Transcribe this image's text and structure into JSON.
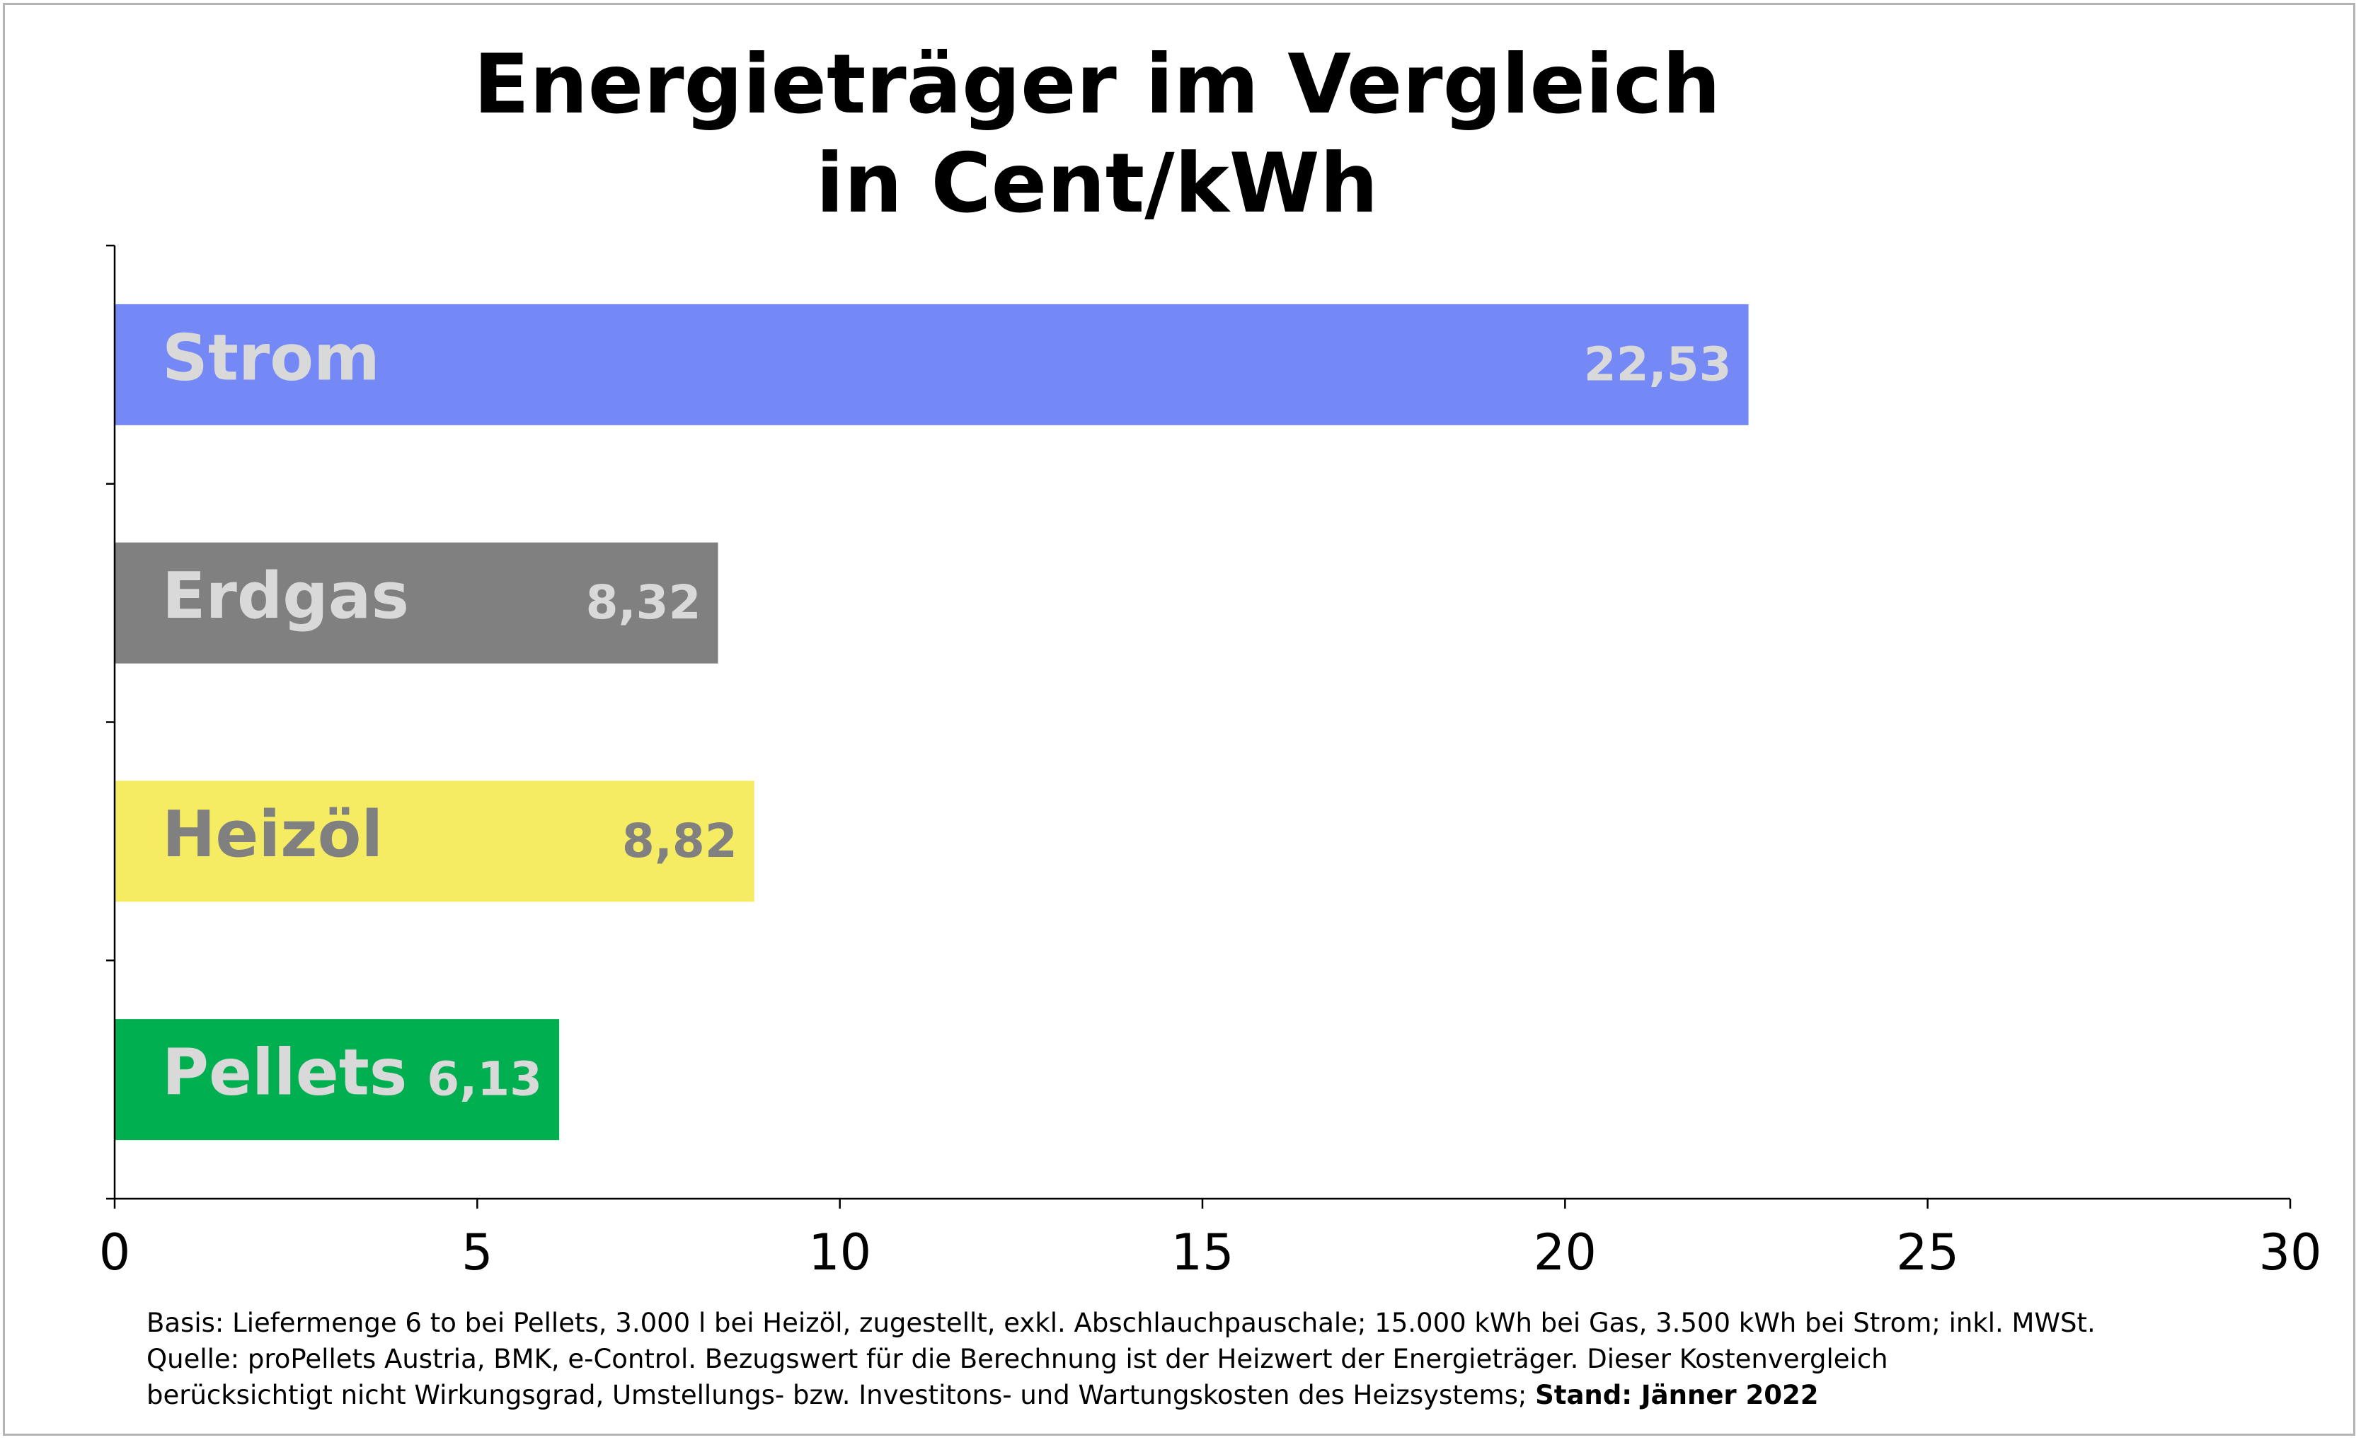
{
  "chart_data": {
    "type": "bar",
    "orientation": "horizontal",
    "title": "Energieträger im Vergleich",
    "subtitle": "in Cent/kWh",
    "categories": [
      "Strom",
      "Erdgas",
      "Heizöl",
      "Pellets"
    ],
    "values": [
      22.53,
      8.32,
      8.82,
      6.13
    ],
    "value_labels": [
      "22,53",
      "8,32",
      "8,82",
      "6,13"
    ],
    "colors": [
      "#7589F6",
      "#808080",
      "#F5EC63",
      "#00B050"
    ],
    "label_colors": [
      "#d9d9d9",
      "#d9d9d9",
      "#808080",
      "#d9d9d9"
    ],
    "xlim": [
      0,
      30
    ],
    "x_ticks": [
      0,
      5,
      10,
      15,
      20,
      25,
      30
    ],
    "xlabel": "",
    "ylabel": "",
    "grid": false,
    "legend": "none"
  },
  "footnote": {
    "line1": "Basis: Liefermenge 6 to bei Pellets, 3.000 l bei Heizöl, zugestellt, exkl. Abschlauchpauschale; 15.000 kWh bei Gas, 3.500 kWh bei Strom; inkl. MWSt.",
    "line2": "Quelle: proPellets Austria, BMK, e-Control. Bezugswert für die Berechnung ist der Heizwert der Energieträger. Dieser Kostenvergleich",
    "line3": "berücksichtigt nicht Wirkungsgrad, Umstellungs- bzw. Investitons- und Wartungskosten des Heizsystems; ",
    "stand": "Stand: Jänner 2022"
  }
}
